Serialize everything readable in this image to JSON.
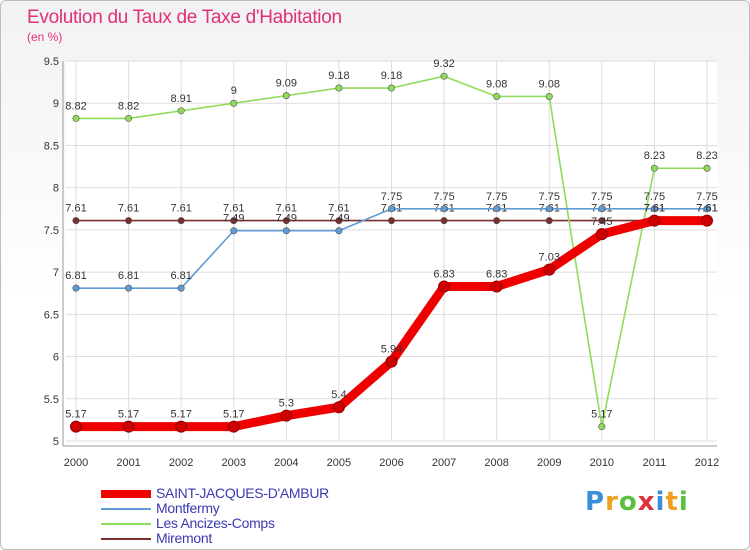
{
  "header": {
    "title": "Evolution du Taux de Taxe d'Habitation",
    "unit": "(en %)"
  },
  "chart_data": {
    "type": "line",
    "x": [
      "2000",
      "2001",
      "2002",
      "2003",
      "2004",
      "2005",
      "2006",
      "2007",
      "2008",
      "2009",
      "2010",
      "2011",
      "2012"
    ],
    "ylim": [
      5,
      9.5
    ],
    "yticks": [
      "5",
      "5.5",
      "6",
      "6.5",
      "7",
      "7.5",
      "8",
      "8.5",
      "9",
      "9.5"
    ],
    "grid": true,
    "legend_position": "bottom-left",
    "series": [
      {
        "name": "SAINT-JACQUES-D'AMBUR",
        "color": "#ee0000",
        "values": [
          5.17,
          5.17,
          5.17,
          5.17,
          5.3,
          5.4,
          5.94,
          6.83,
          6.83,
          7.03,
          7.45,
          7.61,
          7.61
        ],
        "labels": [
          "5.17",
          "5.17",
          "5.17",
          "5.17",
          "5.3",
          "5.4",
          "5.94",
          "6.83",
          "6.83",
          "7.03",
          "7.45",
          "7.61",
          "7.61"
        ]
      },
      {
        "name": "Montfermy",
        "color": "#5f9bd4",
        "values": [
          6.81,
          6.81,
          6.81,
          7.49,
          7.49,
          7.49,
          7.75,
          7.75,
          7.75,
          7.75,
          7.75,
          7.75,
          7.75
        ],
        "labels": [
          "6.81",
          "6.81",
          "6.81",
          "7.49",
          "7.49",
          "7.49",
          "7.75",
          "7.75",
          "7.75",
          "7.75",
          "7.75",
          "7.75",
          "7.75"
        ]
      },
      {
        "name": "Les Ancizes-Comps",
        "color": "#8fdc5a",
        "values": [
          8.82,
          8.82,
          8.91,
          9,
          9.09,
          9.18,
          9.18,
          9.32,
          9.08,
          9.08,
          5.17,
          8.23,
          8.23
        ],
        "labels": [
          "8.82",
          "8.82",
          "8.91",
          "9",
          "9.09",
          "9.18",
          "9.18",
          "9.32",
          "9.08",
          "9.08",
          "5.17",
          "8.23",
          "8.23"
        ]
      },
      {
        "name": "Miremont",
        "color": "#7a2e2e",
        "values": [
          7.61,
          7.61,
          7.61,
          7.61,
          7.61,
          7.61,
          7.61,
          7.61,
          7.61,
          7.61,
          7.61,
          7.61,
          7.61
        ],
        "labels": [
          "7.61",
          "7.61",
          "7.61",
          "7.61",
          "7.61",
          "7.61",
          "7.61",
          "7.61",
          "7.61",
          "7.61",
          "7.61",
          "7.61",
          "7.61"
        ]
      }
    ]
  },
  "logo": {
    "letters": [
      "P",
      "r",
      "o",
      "x",
      "i",
      "t",
      "i"
    ],
    "colors": [
      "#3a8fd8",
      "#f0a020",
      "#5ac040",
      "#e03040",
      "#3a8fd8",
      "#f0a020",
      "#5ac040"
    ]
  }
}
